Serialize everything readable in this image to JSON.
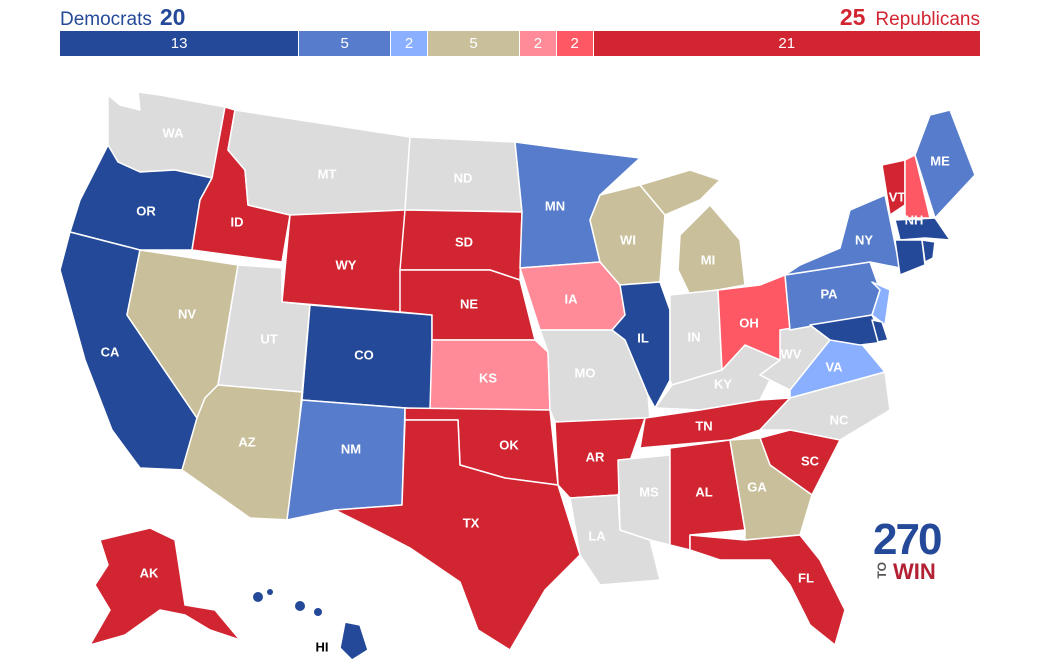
{
  "header": {
    "dem_label": "Democrats",
    "dem_total": "20",
    "rep_total": "25",
    "rep_label": "Republicans"
  },
  "colors": {
    "safe_dem": "#244999",
    "likely_dem": "#577ccc",
    "lean_dem": "#8aafff",
    "tossup": "#c9c09b",
    "lean_rep": "#ff8b98",
    "likely_rep": "#ff5865",
    "safe_rep": "#d22532",
    "none": "#dcdcdc"
  },
  "bar_segments": [
    {
      "value": 13,
      "label": "13",
      "color": "#244999"
    },
    {
      "value": 5,
      "label": "5",
      "color": "#577ccc"
    },
    {
      "value": 2,
      "label": "2",
      "color": "#8aafff"
    },
    {
      "value": 5,
      "label": "5",
      "color": "#c9c09b"
    },
    {
      "value": 2,
      "label": "2",
      "color": "#ff8b98"
    },
    {
      "value": 2,
      "label": "2",
      "color": "#ff5865"
    },
    {
      "value": 21,
      "label": "21",
      "color": "#d22532"
    }
  ],
  "states": {
    "WA": "WA",
    "OR": "OR",
    "CA": "CA",
    "ID": "ID",
    "NV": "NV",
    "MT": "MT",
    "WY": "WY",
    "UT": "UT",
    "AZ": "AZ",
    "CO": "CO",
    "NM": "NM",
    "ND": "ND",
    "SD": "SD",
    "NE": "NE",
    "KS": "KS",
    "OK": "OK",
    "TX": "TX",
    "MN": "MN",
    "IA": "IA",
    "MO": "MO",
    "AR": "AR",
    "LA": "LA",
    "WI": "WI",
    "IL": "IL",
    "MS": "MS",
    "MI": "MI",
    "IN": "IN",
    "KY": "KY",
    "TN": "TN",
    "AL": "AL",
    "OH": "OH",
    "WV": "WV",
    "VA": "VA",
    "NC": "NC",
    "SC": "SC",
    "GA": "GA",
    "FL": "FL",
    "PA": "PA",
    "NY": "NY",
    "VT": "VT",
    "NH": "NH",
    "ME": "ME",
    "AK": "AK",
    "HI": "HI"
  },
  "logo": {
    "number": "270",
    "to": "TO",
    "win": "WIN"
  }
}
